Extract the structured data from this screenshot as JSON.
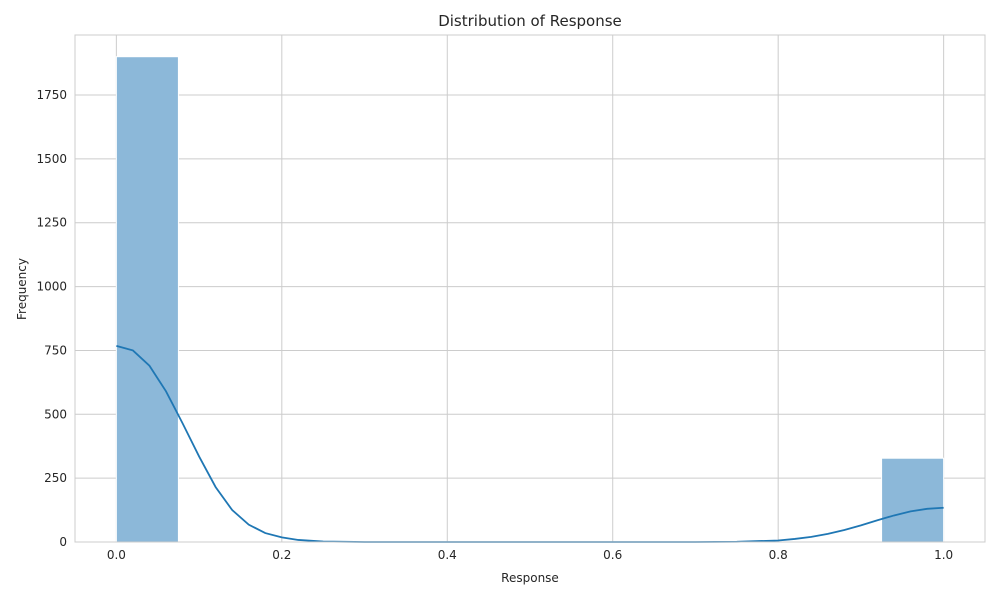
{
  "chart_data": {
    "type": "bar",
    "title": "Distribution of Response",
    "xlabel": "Response",
    "ylabel": "Frequency",
    "xlim": [
      -0.05,
      1.05
    ],
    "ylim": [
      0,
      1985
    ],
    "x_ticks": [
      0.0,
      0.2,
      0.4,
      0.6,
      0.8,
      1.0
    ],
    "x_tick_labels": [
      "0.0",
      "0.2",
      "0.4",
      "0.6",
      "0.8",
      "1.0"
    ],
    "y_ticks": [
      0,
      250,
      500,
      750,
      1000,
      1250,
      1500,
      1750
    ],
    "y_tick_labels": [
      "0",
      "250",
      "500",
      "750",
      "1000",
      "1250",
      "1500",
      "1750"
    ],
    "grid": true,
    "bins": [
      {
        "x0": 0.0,
        "x1": 0.075,
        "count": 1900
      },
      {
        "x0": 0.925,
        "x1": 1.0,
        "count": 328
      }
    ],
    "kde": {
      "x": [
        0.0,
        0.02,
        0.04,
        0.06,
        0.08,
        0.1,
        0.12,
        0.14,
        0.16,
        0.18,
        0.2,
        0.22,
        0.25,
        0.3,
        0.4,
        0.5,
        0.6,
        0.7,
        0.75,
        0.8,
        0.82,
        0.84,
        0.86,
        0.88,
        0.9,
        0.92,
        0.94,
        0.96,
        0.98,
        1.0
      ],
      "y": [
        768,
        750,
        690,
        590,
        465,
        335,
        215,
        125,
        68,
        35,
        18,
        8,
        2,
        0,
        0,
        0,
        0,
        0,
        1,
        6,
        12,
        20,
        32,
        47,
        65,
        85,
        104,
        120,
        130,
        134
      ]
    },
    "colors": {
      "bar_fill": "#8cb8d9",
      "bar_edge": "#ffffff",
      "kde_line": "#1f77b4",
      "grid": "#cccccc"
    }
  }
}
